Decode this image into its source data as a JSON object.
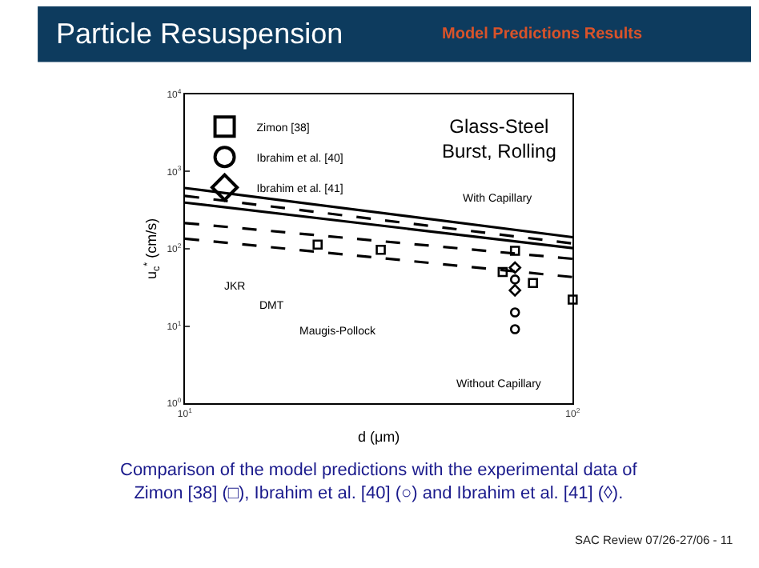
{
  "chart_data": {
    "type": "scatter",
    "title": "Particle Resuspension",
    "subtitle": "Model Predictions Results",
    "xlabel": "d (μm)",
    "ylabel": "u$_{c}$$^{*}$ (cm/s)",
    "log": "xy",
    "xlim": [
      10,
      100
    ],
    "ylim": [
      1,
      10000
    ],
    "xticks": [
      {
        "value": 10,
        "label": "10$^{1}$"
      },
      {
        "value": 100,
        "label": "10$^{2}$"
      }
    ],
    "yticks": [
      {
        "value": 1,
        "label": "10$^{0}$"
      },
      {
        "value": 10,
        "label": "10$^{1}$"
      },
      {
        "value": 100,
        "label": "10$^{2}$"
      },
      {
        "value": 1000,
        "label": "10$^{3}$"
      },
      {
        "value": 10000,
        "label": "10$^{4}$"
      }
    ],
    "legend": "top left",
    "series": [
      {
        "type": "line",
        "line_style": "solid",
        "color": "#000000",
        "x": [
          10,
          100
        ],
        "values": [
          610,
          141
        ]
      },
      {
        "type": "line",
        "line_style": "dashed",
        "color": "#000000",
        "x": [
          10,
          100
        ],
        "values": [
          483,
          117
        ]
      },
      {
        "type": "line",
        "line_style": "solid",
        "color": "#000000",
        "x": [
          10,
          100
        ],
        "values": [
          395,
          102
        ]
      },
      {
        "type": "line",
        "line_style": "dashed",
        "color": "#000000",
        "x": [
          10,
          100
        ],
        "values": [
          215,
          74
        ]
      },
      {
        "type": "line",
        "line_style": "dashed",
        "color": "#000000",
        "x": [
          10,
          100
        ],
        "values": [
          135,
          43
        ]
      },
      {
        "name": "Zimon [38]",
        "marker": "square",
        "color": "#000000",
        "x": [
          22,
          32,
          71,
          66,
          79,
          100
        ],
        "values": [
          113,
          97,
          94,
          50,
          36,
          22
        ]
      },
      {
        "name": "Ibrahim et al. [40]",
        "marker": "circle",
        "color": "#000000",
        "x": [
          71,
          71,
          71
        ],
        "values": [
          40,
          15,
          9.1
        ]
      },
      {
        "name": "Ibrahim et al. [41]",
        "marker": "diamond",
        "color": "#000000",
        "x": [
          71,
          71
        ],
        "values": [
          57,
          29
        ]
      }
    ],
    "annotations": [
      "Glass-Steel\nBurst, Rolling",
      "With Capillary",
      "JKR",
      "DMT",
      "Maugis-Pollock",
      "Without Capillary",
      "Comparison of the model predictions with the experimental data of\nZimon [38] (□), Ibrahim et al. [40] (○) and Ibrahim et al. [41] (◊).",
      "SAC Review 07/26-27/06 - 11"
    ]
  }
}
